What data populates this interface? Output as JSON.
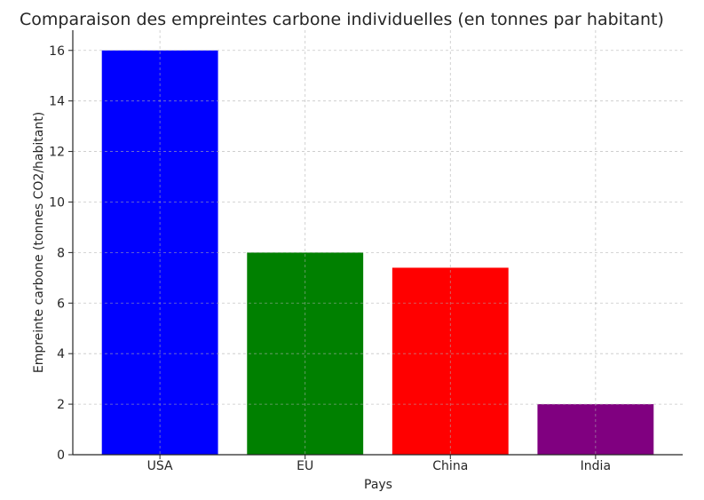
{
  "chart_data": {
    "type": "bar",
    "title": "Comparaison des empreintes carbone individuelles (en tonnes par habitant)",
    "xlabel": "Pays",
    "ylabel": "Empreinte carbone (tonnes CO2/habitant)",
    "categories": [
      "USA",
      "EU",
      "China",
      "India"
    ],
    "values": [
      16,
      8,
      7.4,
      2
    ],
    "colors": [
      "#0000ff",
      "#008000",
      "#ff0000",
      "#800080"
    ],
    "ylim": [
      0,
      16.8
    ],
    "yticks": [
      0,
      2,
      4,
      6,
      8,
      10,
      12,
      14,
      16
    ],
    "grid": true,
    "legend": "none"
  }
}
